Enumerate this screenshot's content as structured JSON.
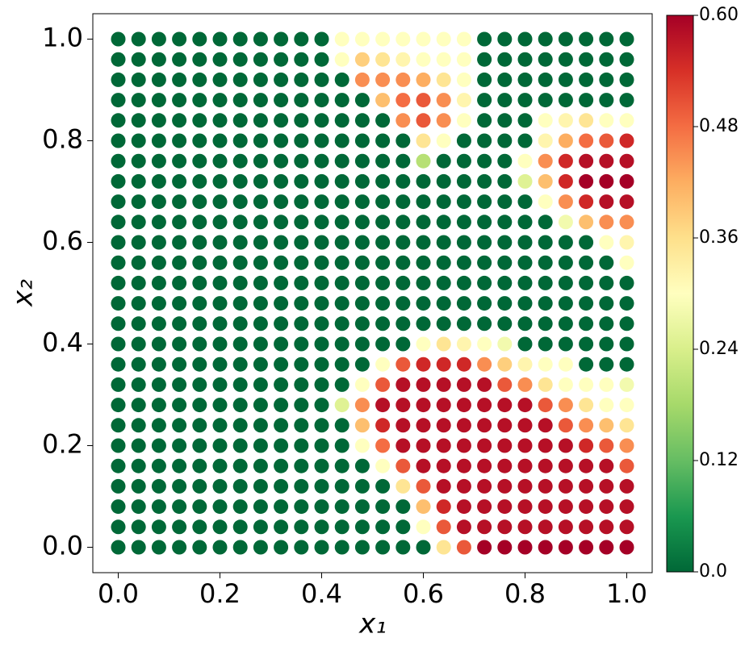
{
  "chart_data": {
    "type": "scatter",
    "xlabel": "x₁",
    "ylabel": "x₂",
    "x": [
      0,
      0.04,
      0.08,
      0.12,
      0.16,
      0.2,
      0.24,
      0.28,
      0.32,
      0.36,
      0.4,
      0.44,
      0.48,
      0.52,
      0.56,
      0.6,
      0.64,
      0.68,
      0.72,
      0.76,
      0.8,
      0.84,
      0.88,
      0.92,
      0.96,
      1.0
    ],
    "y": [
      0,
      0.04,
      0.08,
      0.12,
      0.16,
      0.2,
      0.24,
      0.28,
      0.32,
      0.36,
      0.4,
      0.44,
      0.48,
      0.52,
      0.56,
      0.6,
      0.64,
      0.68,
      0.72,
      0.76,
      0.8,
      0.84,
      0.88,
      0.92,
      0.96,
      1.0
    ],
    "z": [
      [
        0,
        0,
        0,
        0,
        0,
        0,
        0,
        0,
        0,
        0,
        0,
        0,
        0,
        0,
        0,
        0,
        0.35,
        0.5,
        0.6,
        0.6,
        0.6,
        0.6,
        0.6,
        0.6,
        0.6,
        0.6
      ],
      [
        0,
        0,
        0,
        0,
        0,
        0,
        0,
        0,
        0,
        0,
        0,
        0,
        0,
        0,
        0,
        0.3,
        0.5,
        0.58,
        0.58,
        0.58,
        0.58,
        0.58,
        0.58,
        0.58,
        0.58,
        0.58
      ],
      [
        0,
        0,
        0,
        0,
        0,
        0,
        0,
        0,
        0,
        0,
        0,
        0,
        0,
        0,
        0,
        0.4,
        0.55,
        0.58,
        0.58,
        0.58,
        0.58,
        0.58,
        0.58,
        0.58,
        0.58,
        0.58
      ],
      [
        0,
        0,
        0,
        0,
        0,
        0,
        0,
        0,
        0,
        0,
        0,
        0,
        0,
        0,
        0.35,
        0.5,
        0.58,
        0.58,
        0.58,
        0.58,
        0.58,
        0.58,
        0.58,
        0.58,
        0.58,
        0.58
      ],
      [
        0,
        0,
        0,
        0,
        0,
        0,
        0,
        0,
        0,
        0,
        0,
        0,
        0,
        0.3,
        0.5,
        0.58,
        0.58,
        0.58,
        0.58,
        0.58,
        0.58,
        0.58,
        0.58,
        0.58,
        0.58,
        0.5
      ],
      [
        0,
        0,
        0,
        0,
        0,
        0,
        0,
        0,
        0,
        0,
        0,
        0,
        0.3,
        0.48,
        0.58,
        0.58,
        0.58,
        0.58,
        0.58,
        0.58,
        0.58,
        0.58,
        0.58,
        0.55,
        0.5,
        0.45
      ],
      [
        0,
        0,
        0,
        0,
        0,
        0,
        0,
        0,
        0,
        0,
        0,
        0,
        0.4,
        0.55,
        0.58,
        0.58,
        0.58,
        0.58,
        0.58,
        0.58,
        0.58,
        0.58,
        0.5,
        0.45,
        0.4,
        0.35
      ],
      [
        0,
        0,
        0,
        0,
        0,
        0,
        0,
        0,
        0,
        0,
        0,
        0.25,
        0.45,
        0.58,
        0.58,
        0.58,
        0.58,
        0.58,
        0.58,
        0.58,
        0.58,
        0.5,
        0.45,
        0.35,
        0.3,
        0.3
      ],
      [
        0,
        0,
        0,
        0,
        0,
        0,
        0,
        0,
        0,
        0,
        0,
        0,
        0.3,
        0.5,
        0.58,
        0.58,
        0.58,
        0.58,
        0.58,
        0.5,
        0.45,
        0.35,
        0.3,
        0.3,
        0.3,
        0.28
      ],
      [
        0,
        0,
        0,
        0,
        0,
        0,
        0,
        0,
        0,
        0,
        0,
        0,
        0,
        0.3,
        0.5,
        0.55,
        0.55,
        0.55,
        0.45,
        0.38,
        0.32,
        0.3,
        0.3,
        0,
        0,
        0
      ],
      [
        0,
        0,
        0,
        0,
        0,
        0,
        0,
        0,
        0,
        0,
        0,
        0,
        0,
        0,
        0,
        0.3,
        0.35,
        0.32,
        0.3,
        0.28,
        0,
        0,
        0,
        0,
        0,
        0
      ],
      [
        0,
        0,
        0,
        0,
        0,
        0,
        0,
        0,
        0,
        0,
        0,
        0,
        0,
        0,
        0,
        0,
        0,
        0,
        0,
        0,
        0,
        0,
        0,
        0,
        0,
        0
      ],
      [
        0,
        0,
        0,
        0,
        0,
        0,
        0,
        0,
        0,
        0,
        0,
        0,
        0,
        0,
        0,
        0,
        0,
        0,
        0,
        0,
        0,
        0,
        0,
        0,
        0,
        0
      ],
      [
        0,
        0,
        0,
        0,
        0,
        0,
        0,
        0,
        0,
        0,
        0,
        0,
        0,
        0,
        0,
        0,
        0,
        0,
        0,
        0,
        0,
        0,
        0,
        0,
        0,
        0
      ],
      [
        0,
        0,
        0,
        0,
        0,
        0,
        0,
        0,
        0,
        0,
        0,
        0,
        0,
        0,
        0,
        0,
        0,
        0,
        0,
        0,
        0,
        0,
        0,
        0,
        0,
        0.3
      ],
      [
        0,
        0,
        0,
        0,
        0,
        0,
        0,
        0,
        0,
        0,
        0,
        0,
        0,
        0,
        0,
        0,
        0,
        0,
        0,
        0,
        0,
        0,
        0,
        0,
        0.3,
        0.32
      ],
      [
        0,
        0,
        0,
        0,
        0,
        0,
        0,
        0,
        0,
        0,
        0,
        0,
        0,
        0,
        0,
        0,
        0,
        0,
        0,
        0,
        0,
        0,
        0.28,
        0.4,
        0.45,
        0.45
      ],
      [
        0,
        0,
        0,
        0,
        0,
        0,
        0,
        0,
        0,
        0,
        0,
        0,
        0,
        0,
        0,
        0,
        0,
        0,
        0,
        0,
        0,
        0.3,
        0.45,
        0.55,
        0.58,
        0.58
      ],
      [
        0,
        0,
        0,
        0,
        0,
        0,
        0,
        0,
        0,
        0,
        0,
        0,
        0,
        0,
        0,
        0,
        0,
        0,
        0,
        0,
        0.25,
        0.4,
        0.55,
        0.6,
        0.6,
        0.6
      ],
      [
        0,
        0,
        0,
        0,
        0,
        0,
        0,
        0,
        0,
        0,
        0,
        0,
        0,
        0,
        0,
        0.2,
        0,
        0,
        0,
        0,
        0.3,
        0.45,
        0.55,
        0.58,
        0.58,
        0.58
      ],
      [
        0,
        0,
        0,
        0,
        0,
        0,
        0,
        0,
        0,
        0,
        0,
        0,
        0,
        0,
        0,
        0.35,
        0.3,
        0,
        0,
        0,
        0,
        0.32,
        0.42,
        0.48,
        0.5,
        0.55
      ],
      [
        0,
        0,
        0,
        0,
        0,
        0,
        0,
        0,
        0,
        0,
        0,
        0,
        0,
        0,
        0.45,
        0.5,
        0.45,
        0.3,
        0,
        0,
        0,
        0.3,
        0.32,
        0.35,
        0.3,
        0.3
      ],
      [
        0,
        0,
        0,
        0,
        0,
        0,
        0,
        0,
        0,
        0,
        0,
        0,
        0,
        0.4,
        0.48,
        0.5,
        0.45,
        0.32,
        0,
        0,
        0,
        0,
        0,
        0,
        0,
        0
      ],
      [
        0,
        0,
        0,
        0,
        0,
        0,
        0,
        0,
        0,
        0,
        0,
        0,
        0.45,
        0.45,
        0.45,
        0.42,
        0.35,
        0.3,
        0,
        0,
        0,
        0,
        0,
        0,
        0,
        0
      ],
      [
        0,
        0,
        0,
        0,
        0,
        0,
        0,
        0,
        0,
        0,
        0,
        0.3,
        0.38,
        0.35,
        0.32,
        0.3,
        0.3,
        0.3,
        0,
        0,
        0,
        0,
        0,
        0,
        0,
        0
      ],
      [
        0,
        0,
        0,
        0,
        0,
        0,
        0,
        0,
        0,
        0,
        0,
        0.3,
        0.3,
        0.3,
        0.3,
        0.3,
        0.3,
        0.3,
        0,
        0,
        0,
        0,
        0,
        0,
        0,
        0
      ]
    ],
    "colormap": "RdYlGn_r",
    "xlim": [
      -0.05,
      1.05
    ],
    "ylim": [
      -0.05,
      1.05
    ],
    "xticks": [
      {
        "value": 0,
        "label": "0.0"
      },
      0.2,
      0.4,
      0.6,
      0.8,
      {
        "value": 1,
        "label": "1.0"
      }
    ],
    "yticks": [
      {
        "value": 0,
        "label": "0.0"
      },
      0.2,
      0.4,
      0.6,
      0.8,
      {
        "value": 1,
        "label": "1.0"
      }
    ],
    "clim": [
      0,
      0.6
    ],
    "cticks": [
      {
        "value": 0,
        "label": "0.0"
      },
      0.12,
      0.24,
      0.36,
      0.48,
      {
        "value": 0.6,
        "label": "0.60"
      }
    ]
  }
}
